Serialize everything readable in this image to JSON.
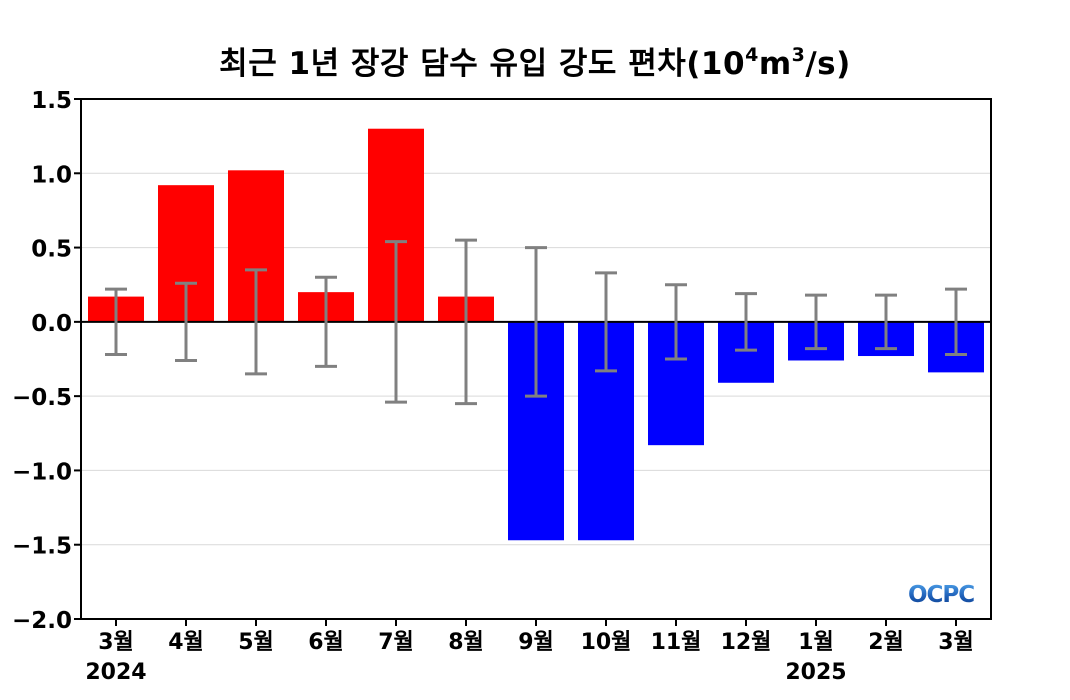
{
  "chart_data": {
    "type": "bar",
    "title": "최근 1년 장강 담수 유입 강도 편차",
    "title_unit_prefix": "(10",
    "title_unit_exp1": "4",
    "title_unit_mid": "m",
    "title_unit_exp2": "3",
    "title_unit_suffix": "/s)",
    "categories": [
      "3월",
      "4월",
      "5월",
      "6월",
      "7월",
      "8월",
      "9월",
      "10월",
      "11월",
      "12월",
      "1월",
      "2월",
      "3월"
    ],
    "year_labels": [
      {
        "category_index": 0,
        "label": "2024"
      },
      {
        "category_index": 10,
        "label": "2025"
      }
    ],
    "values": [
      0.17,
      0.92,
      1.02,
      0.2,
      1.3,
      0.17,
      -1.47,
      -1.47,
      -0.83,
      -0.41,
      -0.26,
      -0.23,
      -0.34
    ],
    "error": [
      0.22,
      0.26,
      0.35,
      0.3,
      0.54,
      0.55,
      0.5,
      0.33,
      0.25,
      0.19,
      0.18,
      0.18,
      0.22
    ],
    "ylim": [
      -2.0,
      1.5
    ],
    "yticks": [
      1.5,
      1.0,
      0.5,
      0.0,
      -0.5,
      -1.0,
      -1.5,
      -2.0
    ],
    "ytick_labels": [
      "1.5",
      "1.0",
      "0.5",
      "0.0",
      "−0.5",
      "−1.0",
      "−1.5",
      "−2.0"
    ],
    "grid": true,
    "colors": {
      "positive": "#ff0000",
      "negative": "#0000ff",
      "error_bar": "#808080",
      "grid": "#d9d9d9",
      "zero_line": "#000000"
    },
    "xlabel": "",
    "ylabel": ""
  },
  "watermark": {
    "text": "OCPC"
  }
}
